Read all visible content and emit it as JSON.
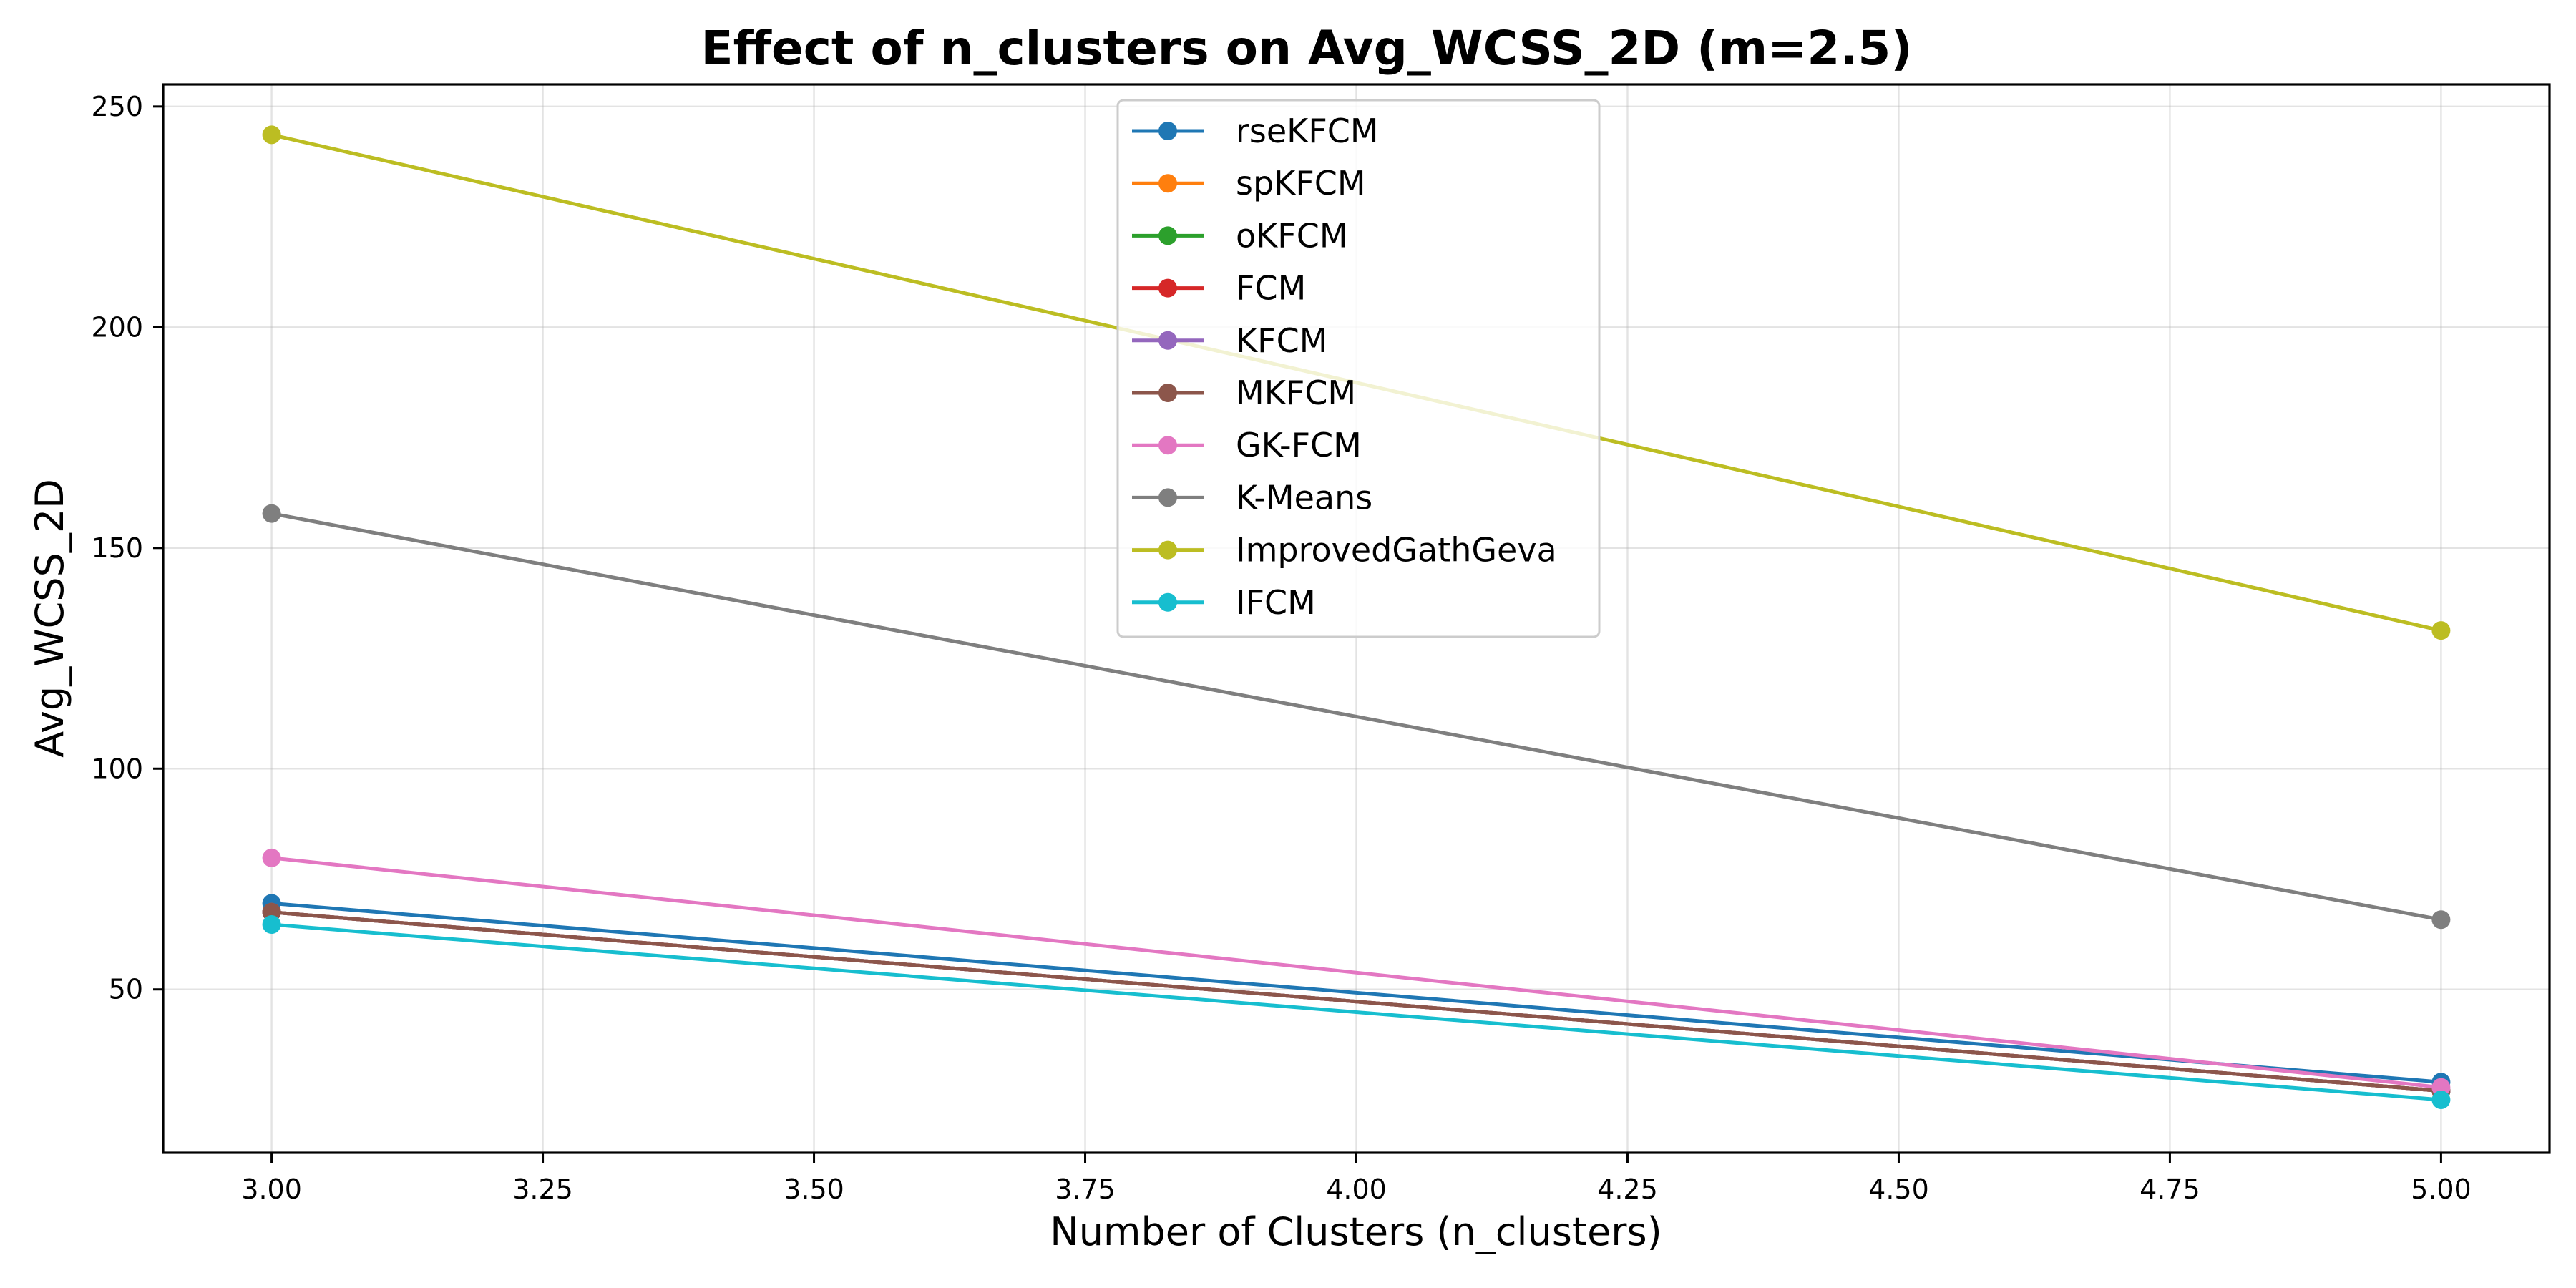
{
  "chart_data": {
    "type": "line",
    "title": "Effect of n_clusters on Avg_WCSS_2D (m=2.5)",
    "xlabel": "Number of Clusters (n_clusters)",
    "ylabel": "Avg_WCSS_2D",
    "xlim": [
      2.9,
      5.1
    ],
    "ylim": [
      13,
      255
    ],
    "x_ticks": [
      3.0,
      3.25,
      3.5,
      3.75,
      4.0,
      4.25,
      4.5,
      4.75,
      5.0
    ],
    "x_tick_labels": [
      "3.00",
      "3.25",
      "3.50",
      "3.75",
      "4.00",
      "4.25",
      "4.50",
      "4.75",
      "5.00"
    ],
    "y_ticks": [
      50,
      100,
      150,
      200,
      250
    ],
    "y_tick_labels": [
      "50",
      "100",
      "150",
      "200",
      "250"
    ],
    "grid": true,
    "legend_position": "top-center",
    "x": [
      3,
      5
    ],
    "series": [
      {
        "name": "rseKFCM",
        "color": "#1f77b4",
        "values": [
          69.5,
          29.0
        ]
      },
      {
        "name": "spKFCM",
        "color": "#ff7f0e",
        "values": [
          67.5,
          27.0
        ]
      },
      {
        "name": "oKFCM",
        "color": "#2ca02c",
        "values": [
          67.5,
          27.0
        ]
      },
      {
        "name": "FCM",
        "color": "#d62728",
        "values": [
          67.5,
          27.0
        ]
      },
      {
        "name": "KFCM",
        "color": "#9467bd",
        "values": [
          67.5,
          27.0
        ]
      },
      {
        "name": "MKFCM",
        "color": "#8c564b",
        "values": [
          67.5,
          27.0
        ]
      },
      {
        "name": "GK-FCM",
        "color": "#e377c2",
        "values": [
          79.8,
          27.8
        ]
      },
      {
        "name": "K-Means",
        "color": "#7f7f7f",
        "values": [
          157.8,
          65.8
        ]
      },
      {
        "name": "ImprovedGathGeva",
        "color": "#bcbd22",
        "values": [
          243.6,
          131.3
        ]
      },
      {
        "name": "IFCM",
        "color": "#17becf",
        "values": [
          64.7,
          25.0
        ]
      }
    ]
  }
}
